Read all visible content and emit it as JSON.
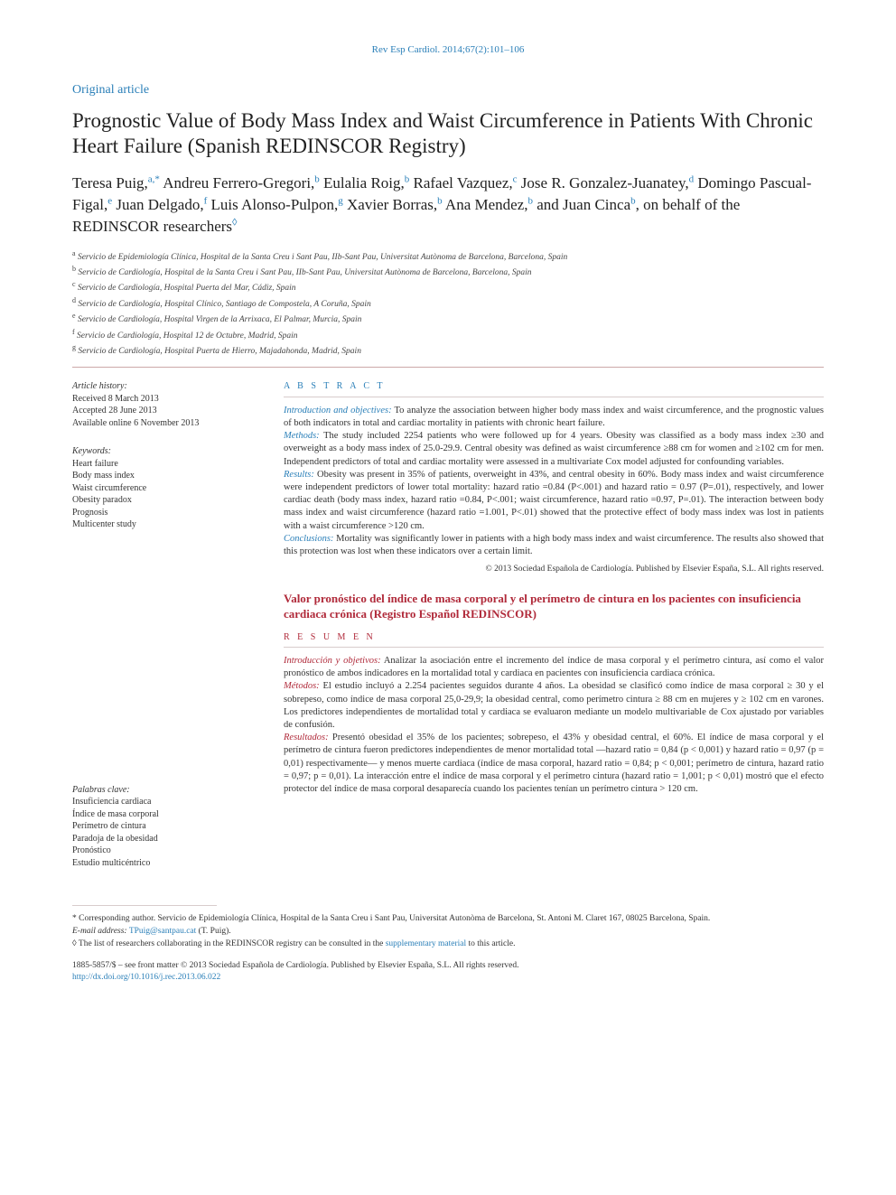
{
  "journal_citation": "Rev Esp Cardiol. 2014;67(2):101–106",
  "section_label": "Original article",
  "title": "Prognostic Value of Body Mass Index and Waist Circumference in Patients With Chronic Heart Failure (Spanish REDINSCOR Registry)",
  "authors_html": "Teresa Puig,<span class='sup'>a,*</span> Andreu Ferrero-Gregori,<span class='sup'>b</span> Eulalia Roig,<span class='sup'>b</span> Rafael Vazquez,<span class='sup'>c</span> Jose R. Gonzalez-Juanatey,<span class='sup'>d</span> Domingo Pascual-Figal,<span class='sup'>e</span> Juan Delgado,<span class='sup'>f</span> Luis Alonso-Pulpon,<span class='sup'>g</span> Xavier Borras,<span class='sup'>b</span> Ana Mendez,<span class='sup'>b</span> and Juan Cinca<span class='sup'>b</span>, on behalf of the REDINSCOR researchers<span class='diamond'>◊</span>",
  "affiliations": [
    {
      "sup": "a",
      "text": "Servicio de Epidemiología Clínica, Hospital de la Santa Creu i Sant Pau, IIb-Sant Pau, Universitat Autònoma de Barcelona, Barcelona, Spain"
    },
    {
      "sup": "b",
      "text": "Servicio de Cardiología, Hospital de la Santa Creu i Sant Pau, IIb-Sant Pau, Universitat Autònoma de Barcelona, Barcelona, Spain"
    },
    {
      "sup": "c",
      "text": "Servicio de Cardiología, Hospital Puerta del Mar, Cádiz, Spain"
    },
    {
      "sup": "d",
      "text": "Servicio de Cardiología, Hospital Clínico, Santiago de Compostela, A Coruña, Spain"
    },
    {
      "sup": "e",
      "text": "Servicio de Cardiología, Hospital Virgen de la Arrixaca, El Palmar, Murcia, Spain"
    },
    {
      "sup": "f",
      "text": "Servicio de Cardiología, Hospital 12 de Octubre, Madrid, Spain"
    },
    {
      "sup": "g",
      "text": "Servicio de Cardiología, Hospital Puerta de Hierro, Majadahonda, Madrid, Spain"
    }
  ],
  "history": {
    "head": "Article history:",
    "received": "Received 8 March 2013",
    "accepted": "Accepted 28 June 2013",
    "online": "Available online 6 November 2013"
  },
  "keywords_en": {
    "head": "Keywords:",
    "items": [
      "Heart failure",
      "Body mass index",
      "Waist circumference",
      "Obesity paradox",
      "Prognosis",
      "Multicenter study"
    ]
  },
  "keywords_es": {
    "head": "Palabras clave:",
    "items": [
      "Insuficiencia cardiaca",
      "Índice de masa corporal",
      "Perímetro de cintura",
      "Paradoja de la obesidad",
      "Pronóstico",
      "Estudio multicéntrico"
    ]
  },
  "abstract_en": {
    "head": "A B S T R A C T",
    "intro_label": "Introduction and objectives:",
    "intro": " To analyze the association between higher body mass index and waist circumference, and the prognostic values of both indicators in total and cardiac mortality in patients with chronic heart failure.",
    "methods_label": "Methods:",
    "methods": " The study included 2254 patients who were followed up for 4 years. Obesity was classified as a body mass index ≥30 and overweight as a body mass index of 25.0-29.9. Central obesity was defined as waist circumference ≥88 cm for women and ≥102 cm for men. Independent predictors of total and cardiac mortality were assessed in a multivariate Cox model adjusted for confounding variables.",
    "results_label": "Results:",
    "results": " Obesity was present in 35% of patients, overweight in 43%, and central obesity in 60%. Body mass index and waist circumference were independent predictors of lower total mortality: hazard ratio =0.84 (P<.001) and hazard ratio = 0.97 (P=.01), respectively, and lower cardiac death (body mass index, hazard ratio =0.84, P<.001; waist circumference, hazard ratio =0.97, P=.01). The interaction between body mass index and waist circumference (hazard ratio =1.001, P<.01) showed that the protective effect of body mass index was lost in patients with a waist circumference >120 cm.",
    "conclusions_label": "Conclusions:",
    "conclusions": " Mortality was significantly lower in patients with a high body mass index and waist circumference. The results also showed that this protection was lost when these indicators over a certain limit.",
    "copyright": "© 2013 Sociedad Española de Cardiología. Published by Elsevier España, S.L. All rights reserved."
  },
  "spanish_title": "Valor pronóstico del índice de masa corporal y el perímetro de cintura en los pacientes con insuficiencia cardiaca crónica (Registro Español REDINSCOR)",
  "abstract_es": {
    "head": "R E S U M E N",
    "intro_label": "Introducción y objetivos:",
    "intro": " Analizar la asociación entre el incremento del índice de masa corporal y el perímetro cintura, así como el valor pronóstico de ambos indicadores en la mortalidad total y cardiaca en pacientes con insuficiencia cardiaca crónica.",
    "methods_label": "Métodos:",
    "methods": " El estudio incluyó a 2.254 pacientes seguidos durante 4 años. La obesidad se clasificó como índice de masa corporal ≥ 30 y el sobrepeso, como índice de masa corporal 25,0-29,9; la obesidad central, como perímetro cintura ≥ 88 cm en mujeres y ≥ 102 cm en varones. Los predictores independientes de mortalidad total y cardiaca se evaluaron mediante un modelo multivariable de Cox ajustado por variables de confusión.",
    "results_label": "Resultados:",
    "results": " Presentó obesidad el 35% de los pacientes; sobrepeso, el 43% y obesidad central, el 60%. El índice de masa corporal y el perímetro de cintura fueron predictores independientes de menor mortalidad total —hazard ratio = 0,84 (p < 0,001) y hazard ratio = 0,97 (p = 0,01) respectivamente— y menos muerte cardiaca (índice de masa corporal, hazard ratio = 0,84; p < 0,001; perímetro de cintura, hazard ratio = 0,97; p = 0,01). La interacción entre el índice de masa corporal y el perímetro cintura (hazard ratio = 1,001; p < 0,01) mostró que el efecto protector del índice de masa corporal desaparecía cuando los pacientes tenían un perímetro cintura > 120 cm."
  },
  "footnotes": {
    "corresponding": "* Corresponding author. Servicio de Epidemiología Clínica, Hospital de la Santa Creu i Sant Pau, Universitat Autonòma de Barcelona, St. Antoni M. Claret 167, 08025 Barcelona, Spain.",
    "email_label": "E-mail address:",
    "email": "TPuig@santpau.cat",
    "email_author": "(T. Puig).",
    "diamond": "◊ The list of researchers collaborating in the REDINSCOR registry can be consulted in the ",
    "supp_link": "supplementary material",
    "diamond_tail": " to this article."
  },
  "front_matter": "1885-5857/$ – see front matter © 2013 Sociedad Española de Cardiología. Published by Elsevier España, S.L. All rights reserved.",
  "doi": "http://dx.doi.org/10.1016/j.rec.2013.06.022",
  "colors": {
    "link_blue": "#2a7fb8",
    "accent_red": "#b02a3a",
    "rule": "#cca8a8",
    "text": "#333333",
    "background": "#ffffff"
  },
  "typography": {
    "body_size_pt": 10,
    "title_size_pt": 18,
    "authors_size_pt": 13,
    "abstract_size_pt": 8.5,
    "family": "Georgia/serif"
  }
}
